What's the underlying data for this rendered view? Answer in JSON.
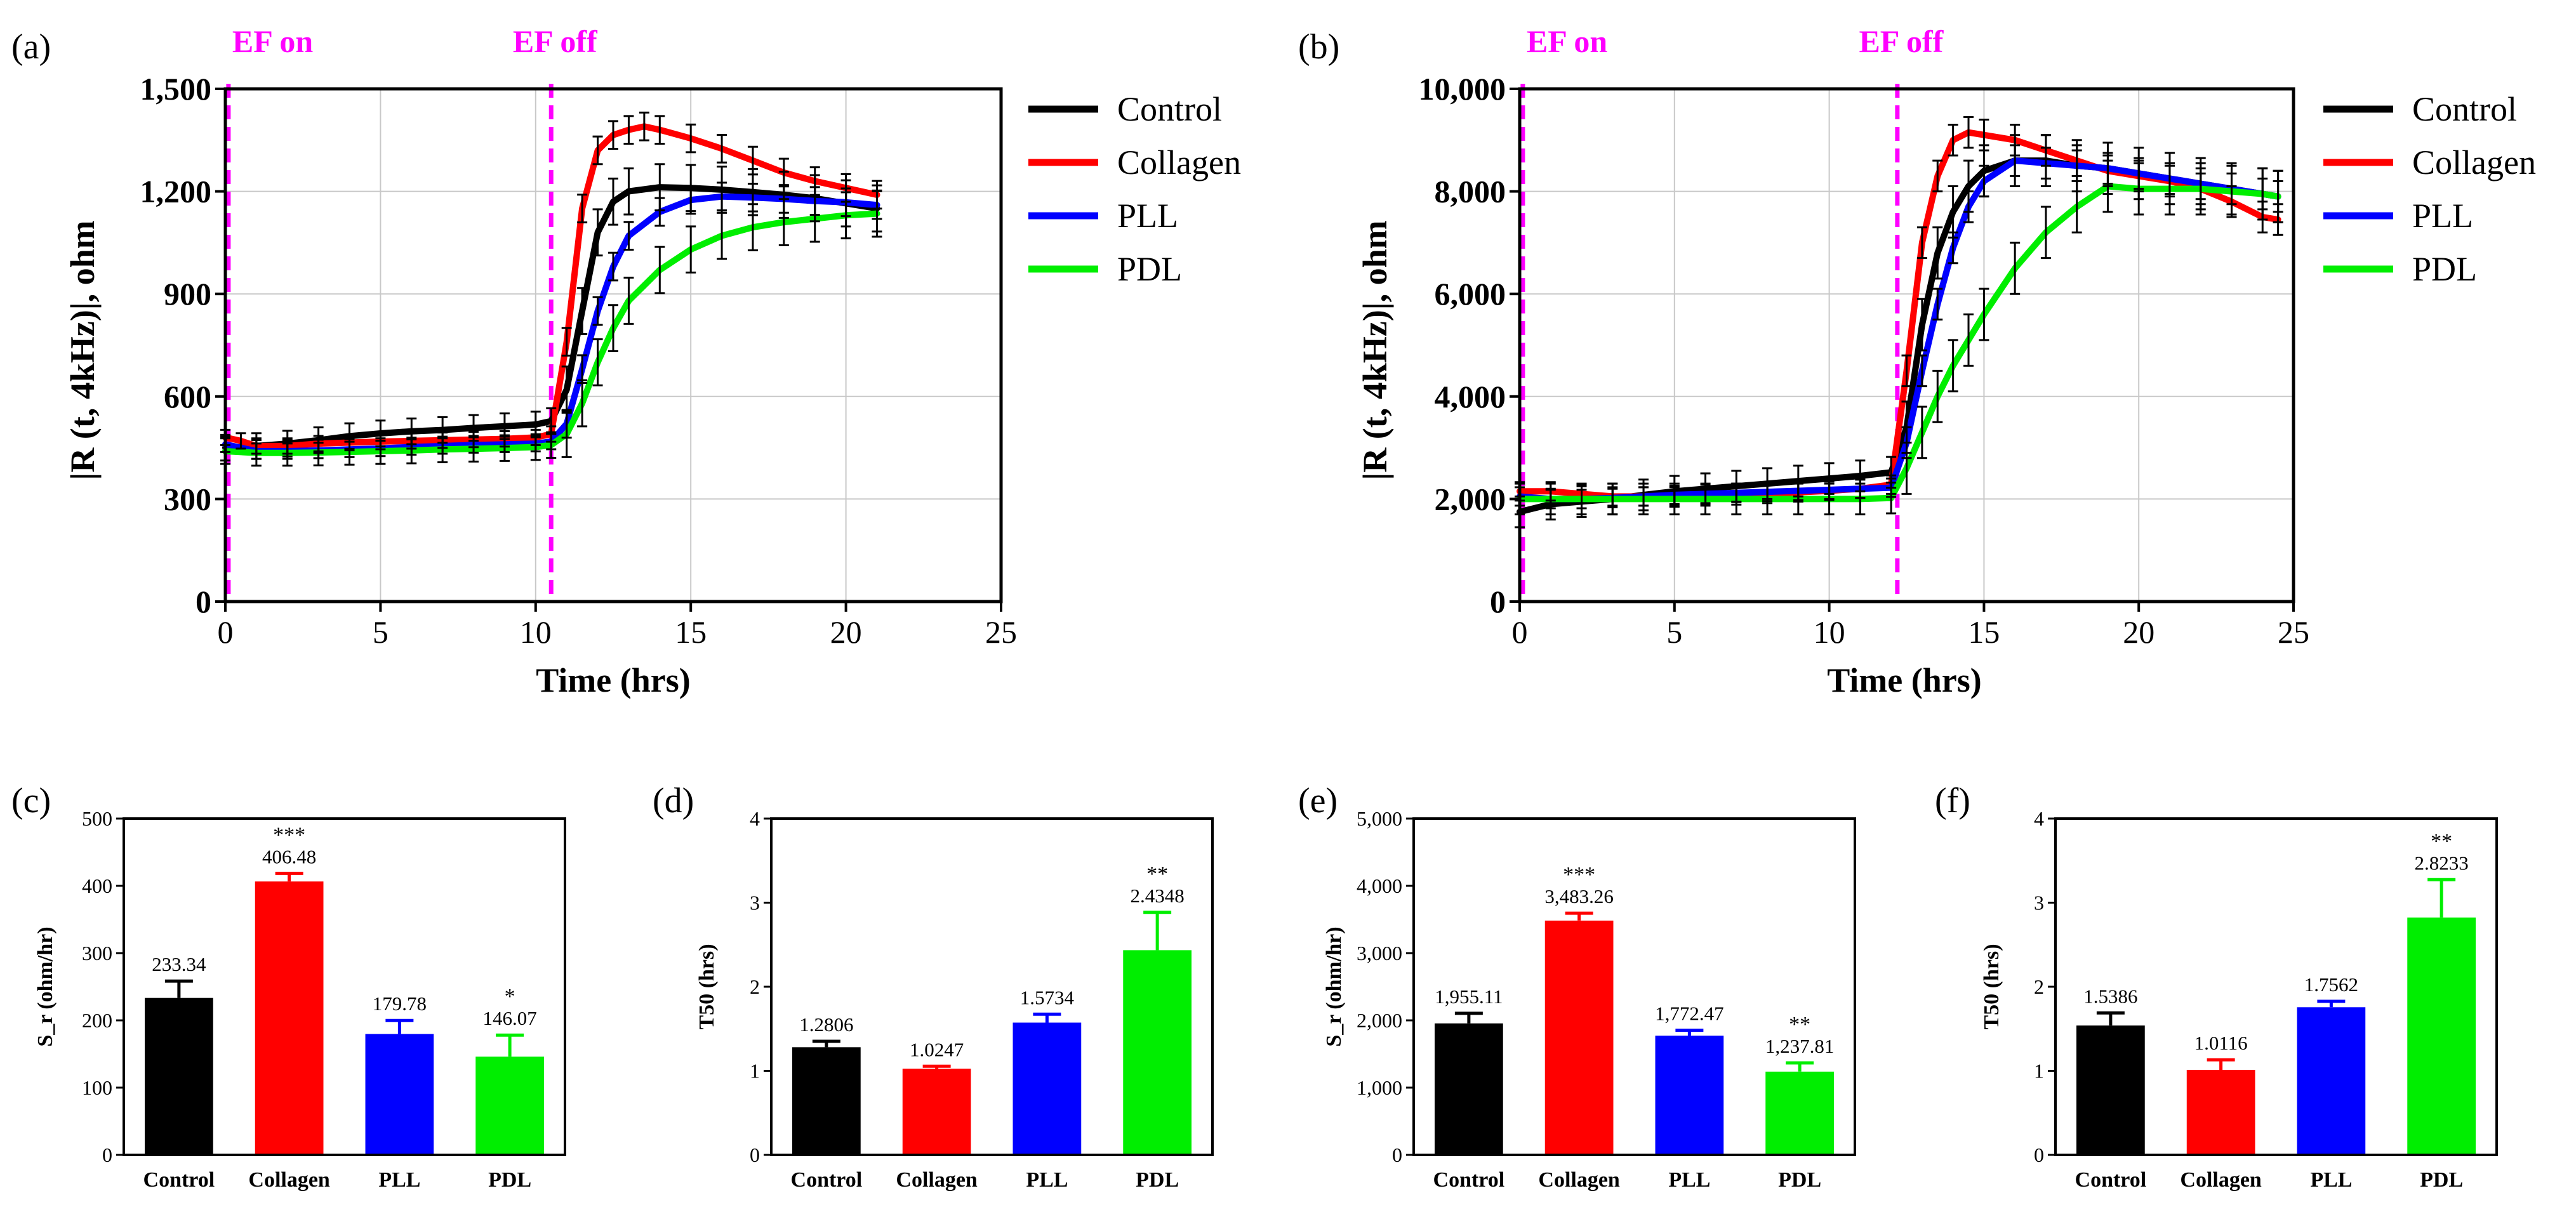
{
  "chart_data": [
    {
      "panel": "(a)",
      "type": "line",
      "xlabel": "Time (hrs)",
      "ylabel": "|R (t, 4kHz)|, ohm",
      "xlim": [
        0,
        25
      ],
      "ylim": [
        0,
        1500
      ],
      "xticks": [
        "0",
        "5",
        "10",
        "15",
        "20",
        "25"
      ],
      "yticks": [
        "0",
        "300",
        "600",
        "900",
        "1,200",
        "1,500"
      ],
      "grid": true,
      "legend_position": "right",
      "events": [
        {
          "label": "EF on",
          "x": 0.1
        },
        {
          "label": "EF off",
          "x": 10.5
        }
      ],
      "series": [
        {
          "name": "Control",
          "color": "#000000",
          "x": [
            0,
            1,
            2,
            3,
            4,
            5,
            6,
            7,
            8,
            9,
            10,
            10.5,
            11,
            11.5,
            12,
            12.5,
            13,
            14,
            15,
            16,
            17,
            18,
            19,
            20,
            21
          ],
          "y": [
            450,
            455,
            462,
            472,
            484,
            492,
            498,
            502,
            508,
            513,
            518,
            528,
            620,
            850,
            1080,
            1170,
            1200,
            1212,
            1210,
            1205,
            1198,
            1190,
            1180,
            1165,
            1150
          ]
        },
        {
          "name": "Collagen",
          "color": "#ff0000",
          "x": [
            0,
            0.5,
            1,
            2,
            3,
            4,
            5,
            6,
            7,
            8,
            9,
            10,
            10.5,
            11,
            11.5,
            12,
            12.5,
            13,
            13.5,
            14,
            15,
            16,
            17,
            18,
            19,
            20,
            21
          ],
          "y": [
            480,
            470,
            455,
            455,
            462,
            465,
            468,
            470,
            472,
            474,
            476,
            480,
            490,
            760,
            1150,
            1320,
            1365,
            1380,
            1390,
            1380,
            1355,
            1325,
            1290,
            1255,
            1230,
            1210,
            1190
          ]
        },
        {
          "name": "PLL",
          "color": "#0000ff",
          "x": [
            0,
            1,
            2,
            3,
            4,
            5,
            6,
            7,
            8,
            9,
            10,
            10.5,
            11,
            11.5,
            12,
            12.5,
            13,
            14,
            15,
            16,
            17,
            18,
            19,
            20,
            21
          ],
          "y": [
            460,
            440,
            440,
            442,
            445,
            448,
            452,
            455,
            458,
            460,
            462,
            468,
            520,
            680,
            850,
            980,
            1070,
            1140,
            1175,
            1185,
            1182,
            1178,
            1172,
            1168,
            1160
          ]
        },
        {
          "name": "PDL",
          "color": "#00ee00",
          "x": [
            0,
            1,
            2,
            3,
            4,
            5,
            6,
            7,
            8,
            9,
            10,
            10.5,
            11,
            11.5,
            12,
            12.5,
            13,
            14,
            15,
            16,
            17,
            18,
            19,
            20,
            21
          ],
          "y": [
            440,
            435,
            435,
            436,
            438,
            440,
            442,
            445,
            447,
            449,
            452,
            458,
            490,
            580,
            700,
            800,
            880,
            970,
            1030,
            1070,
            1095,
            1110,
            1120,
            1130,
            1135
          ]
        }
      ]
    },
    {
      "panel": "(b)",
      "type": "line",
      "xlabel": "Time (hrs)",
      "ylabel": "|R (t, 4kHz)|, ohm",
      "xlim": [
        0,
        25
      ],
      "ylim": [
        0,
        10000
      ],
      "xticks": [
        "0",
        "5",
        "10",
        "15",
        "20",
        "25"
      ],
      "yticks": [
        "0",
        "2,000",
        "4,000",
        "6,000",
        "8,000",
        "10,000"
      ],
      "grid": true,
      "legend_position": "right",
      "events": [
        {
          "label": "EF on",
          "x": 0.1
        },
        {
          "label": "EF off",
          "x": 12.2
        }
      ],
      "series": [
        {
          "name": "Control",
          "color": "#000000",
          "x": [
            0,
            1,
            2,
            3,
            4,
            5,
            6,
            7,
            8,
            9,
            10,
            11,
            12,
            12.5,
            13,
            13.5,
            14,
            14.5,
            15,
            16,
            17,
            18,
            19,
            20,
            21,
            22,
            23,
            24,
            24.5
          ],
          "y": [
            1750,
            1900,
            1950,
            2000,
            2080,
            2150,
            2200,
            2250,
            2300,
            2350,
            2400,
            2450,
            2520,
            3400,
            5400,
            6800,
            7600,
            8100,
            8400,
            8600,
            8600,
            8500,
            8450,
            8350,
            8250,
            8150,
            8050,
            7950,
            7900
          ]
        },
        {
          "name": "Collagen",
          "color": "#ff0000",
          "x": [
            0,
            1,
            2,
            3,
            4,
            5,
            6,
            7,
            8,
            9,
            10,
            11,
            12,
            12.5,
            13,
            13.5,
            14,
            14.5,
            15,
            16,
            17,
            18,
            19,
            20,
            21,
            22,
            23,
            24,
            24.5
          ],
          "y": [
            2150,
            2150,
            2100,
            2050,
            2050,
            2050,
            2050,
            2070,
            2100,
            2130,
            2160,
            2200,
            2280,
            4500,
            7000,
            8300,
            9000,
            9150,
            9100,
            9000,
            8800,
            8600,
            8400,
            8300,
            8200,
            8050,
            7800,
            7500,
            7450
          ]
        },
        {
          "name": "PLL",
          "color": "#0000ff",
          "x": [
            0,
            1,
            2,
            3,
            4,
            5,
            6,
            7,
            8,
            9,
            10,
            11,
            12,
            12.5,
            13,
            13.5,
            14,
            14.5,
            15,
            16,
            17,
            18,
            19,
            20,
            21,
            22,
            23,
            24,
            24.5
          ],
          "y": [
            2050,
            2000,
            2000,
            2020,
            2050,
            2080,
            2100,
            2120,
            2140,
            2160,
            2180,
            2200,
            2220,
            3100,
            4500,
            5800,
            6900,
            7700,
            8200,
            8600,
            8550,
            8500,
            8450,
            8350,
            8250,
            8150,
            8050,
            7950,
            7900
          ]
        },
        {
          "name": "PDL",
          "color": "#00ee00",
          "x": [
            0,
            1,
            2,
            3,
            4,
            5,
            6,
            7,
            8,
            9,
            10,
            11,
            12,
            12.5,
            13,
            13.5,
            14,
            14.5,
            15,
            16,
            17,
            18,
            19,
            20,
            21,
            22,
            23,
            24,
            24.5
          ],
          "y": [
            2000,
            2000,
            2000,
            2000,
            2000,
            2000,
            2000,
            2000,
            2000,
            2000,
            2000,
            2000,
            2020,
            2600,
            3300,
            4000,
            4600,
            5100,
            5600,
            6500,
            7200,
            7700,
            8100,
            8050,
            8050,
            8050,
            8000,
            7950,
            7900
          ]
        }
      ]
    },
    {
      "panel": "(c)",
      "type": "bar",
      "ylabel": "S_r (ohm/hr)",
      "ylim": [
        0,
        500
      ],
      "yticks": [
        "0",
        "100",
        "200",
        "300",
        "400",
        "500"
      ],
      "categories": [
        "Control",
        "Collagen",
        "PLL",
        "PDL"
      ],
      "values": [
        233.34,
        406.48,
        179.78,
        146.07
      ],
      "errors": [
        25,
        12,
        20,
        32
      ],
      "value_labels": [
        "233.34",
        "406.48",
        "179.78",
        "146.07"
      ],
      "significance": [
        "",
        "***",
        "",
        "*"
      ],
      "colors": [
        "#000000",
        "#ff0000",
        "#0000ff",
        "#00ee00"
      ]
    },
    {
      "panel": "(d)",
      "type": "bar",
      "ylabel": "T50 (hrs)",
      "ylim": [
        0,
        4
      ],
      "yticks": [
        "0",
        "1",
        "2",
        "3",
        "4"
      ],
      "categories": [
        "Control",
        "Collagen",
        "PLL",
        "PDL"
      ],
      "values": [
        1.2806,
        1.0247,
        1.5734,
        2.4348
      ],
      "errors": [
        0.07,
        0.03,
        0.1,
        0.45
      ],
      "value_labels": [
        "1.2806",
        "1.0247",
        "1.5734",
        "2.4348"
      ],
      "significance": [
        "",
        "",
        "",
        "**"
      ],
      "colors": [
        "#000000",
        "#ff0000",
        "#0000ff",
        "#00ee00"
      ]
    },
    {
      "panel": "(e)",
      "type": "bar",
      "ylabel": "S_r (ohm/hr)",
      "ylim": [
        0,
        5000
      ],
      "yticks": [
        "0",
        "1,000",
        "2,000",
        "3,000",
        "4,000",
        "5,000"
      ],
      "categories": [
        "Control",
        "Collagen",
        "PLL",
        "PDL"
      ],
      "values": [
        1955.11,
        3483.26,
        1772.47,
        1237.81
      ],
      "errors": [
        150,
        110,
        80,
        130
      ],
      "value_labels": [
        "1,955.11",
        "3,483.26",
        "1,772.47",
        "1,237.81"
      ],
      "significance": [
        "",
        "***",
        "",
        "**"
      ],
      "colors": [
        "#000000",
        "#ff0000",
        "#0000ff",
        "#00ee00"
      ]
    },
    {
      "panel": "(f)",
      "type": "bar",
      "ylabel": "T50 (hrs)",
      "ylim": [
        0,
        4
      ],
      "yticks": [
        "0",
        "1",
        "2",
        "3",
        "4"
      ],
      "categories": [
        "Control",
        "Collagen",
        "PLL",
        "PDL"
      ],
      "values": [
        1.5386,
        1.0116,
        1.7562,
        2.8233
      ],
      "errors": [
        0.15,
        0.12,
        0.07,
        0.45
      ],
      "value_labels": [
        "1.5386",
        "1.0116",
        "1.7562",
        "2.8233"
      ],
      "significance": [
        "",
        "",
        "",
        "**"
      ],
      "colors": [
        "#000000",
        "#ff0000",
        "#0000ff",
        "#00ee00"
      ]
    }
  ]
}
